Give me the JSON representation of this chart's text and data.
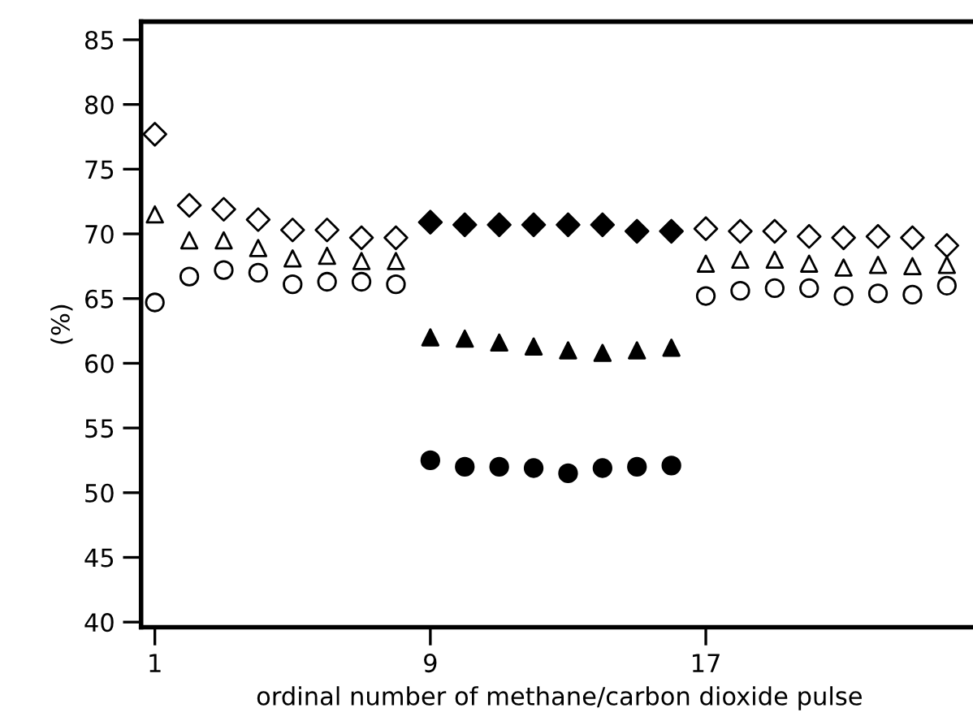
{
  "chart_data": {
    "type": "scatter",
    "xlabel": "ordinal number of methane/carbon dioxide pulse",
    "ylabel": "(%)",
    "xlim": [
      0.6,
      24.9
    ],
    "ylim": [
      39.6,
      86.4
    ],
    "xticks": [
      1,
      9,
      17
    ],
    "yticks": [
      40,
      45,
      50,
      55,
      60,
      65,
      70,
      75,
      80,
      85
    ],
    "grid": false,
    "legend": false,
    "series": [
      {
        "marker": "diamond",
        "color": "#ffffff",
        "x": [
          1,
          2,
          3,
          4,
          5,
          6,
          7,
          8,
          17,
          18,
          19,
          20,
          21,
          22,
          23,
          24
        ],
        "values": [
          77.7,
          72.2,
          71.9,
          71.1,
          70.3,
          70.3,
          69.7,
          69.7,
          70.4,
          70.2,
          70.2,
          69.8,
          69.7,
          69.8,
          69.7,
          69.1
        ]
      },
      {
        "marker": "triangle",
        "color": "#ffffff",
        "x": [
          1,
          2,
          3,
          4,
          5,
          6,
          7,
          8,
          17,
          18,
          19,
          20,
          21,
          22,
          23,
          24
        ],
        "values": [
          71.5,
          69.5,
          69.5,
          68.9,
          68.1,
          68.3,
          67.9,
          67.9,
          67.7,
          68.0,
          68.0,
          67.7,
          67.4,
          67.6,
          67.5,
          67.6
        ]
      },
      {
        "marker": "circle",
        "color": "#ffffff",
        "x": [
          1,
          2,
          3,
          4,
          5,
          6,
          7,
          8,
          17,
          18,
          19,
          20,
          21,
          22,
          23,
          24
        ],
        "values": [
          64.7,
          66.7,
          67.2,
          67.0,
          66.1,
          66.3,
          66.3,
          66.1,
          65.2,
          65.6,
          65.8,
          65.8,
          65.2,
          65.4,
          65.3,
          66.0
        ]
      },
      {
        "marker": "diamond",
        "color": "#000000",
        "x": [
          9,
          10,
          11,
          12,
          13,
          14,
          15,
          16
        ],
        "values": [
          70.9,
          70.7,
          70.7,
          70.7,
          70.7,
          70.7,
          70.2,
          70.2
        ]
      },
      {
        "marker": "triangle",
        "color": "#000000",
        "x": [
          9,
          10,
          11,
          12,
          13,
          14,
          15,
          16
        ],
        "values": [
          62.0,
          61.9,
          61.6,
          61.3,
          61.0,
          60.8,
          61.0,
          61.2
        ]
      },
      {
        "marker": "circle",
        "color": "#000000",
        "x": [
          9,
          10,
          11,
          12,
          13,
          14,
          15,
          16
        ],
        "values": [
          52.5,
          52.0,
          52.0,
          51.9,
          51.5,
          51.9,
          52.0,
          52.1
        ]
      }
    ]
  }
}
